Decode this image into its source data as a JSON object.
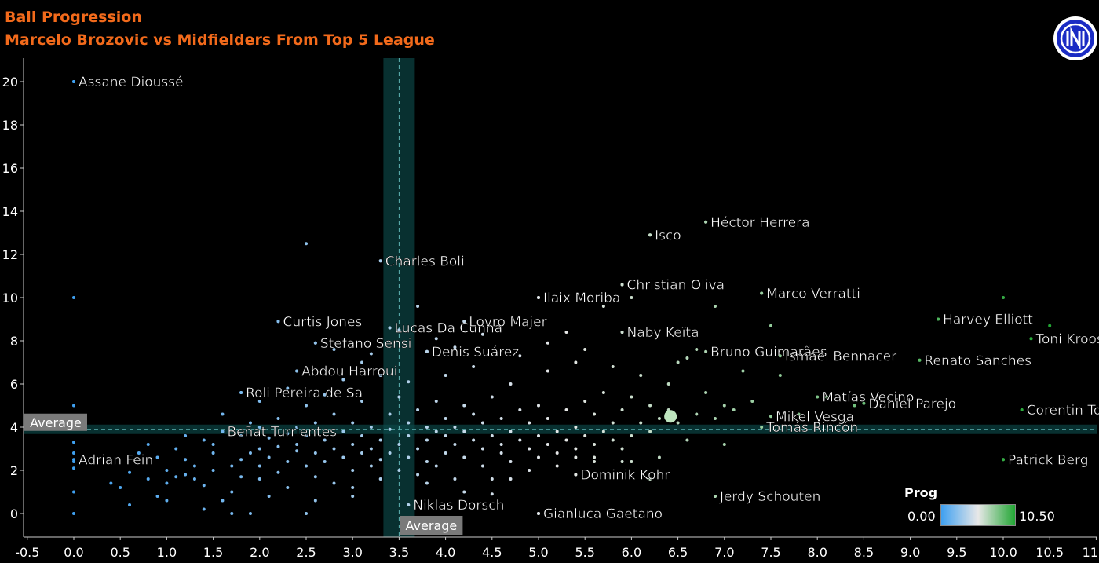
{
  "chart_data": {
    "type": "scatter",
    "title": "Ball Progression",
    "subtitle": "Marcelo Brozovic vs Midfielders From Top 5 League",
    "xlabel": "",
    "ylabel": "",
    "xlim": [
      -0.5,
      11.0
    ],
    "ylim": [
      -1,
      21
    ],
    "xticks": [
      "-0.5",
      "0.0",
      "0.5",
      "1.0",
      "1.5",
      "2.0",
      "2.5",
      "3.0",
      "3.5",
      "4.0",
      "4.5",
      "5.0",
      "5.5",
      "6.0",
      "6.5",
      "7.0",
      "7.5",
      "8.0",
      "8.5",
      "9.0",
      "9.5",
      "10.0",
      "10.5",
      "11.0"
    ],
    "yticks": [
      "0",
      "2",
      "4",
      "6",
      "8",
      "10",
      "12",
      "14",
      "16",
      "18",
      "20"
    ],
    "grid": false,
    "average_x": 3.5,
    "average_y": 3.9,
    "average_label_x": "Average",
    "average_label_y": "Average",
    "color_scale": {
      "title": "Prog",
      "min": 0.0,
      "max": 10.5,
      "min_label": "0.00",
      "max_label": "10.50",
      "colors": [
        "#3fa0f0",
        "#e8e8e8",
        "#22a634"
      ]
    },
    "highlight": {
      "x": 6.42,
      "y": 4.5,
      "color": "#bfe5bf"
    },
    "labeled_points": [
      {
        "name": "Assane Dioussé",
        "x": 0.0,
        "y": 20.0
      },
      {
        "name": "Charles Boli",
        "x": 3.3,
        "y": 11.7
      },
      {
        "name": "Curtis Jones",
        "x": 2.2,
        "y": 8.9
      },
      {
        "name": "Lucas Da Cunha",
        "x": 3.4,
        "y": 8.6
      },
      {
        "name": "Stefano Sensi",
        "x": 2.6,
        "y": 7.9
      },
      {
        "name": "Abdou Harroui",
        "x": 2.4,
        "y": 6.6
      },
      {
        "name": "Roli Pereira de Sa",
        "x": 1.8,
        "y": 5.6
      },
      {
        "name": "Beñat Turrientes",
        "x": 1.6,
        "y": 3.8
      },
      {
        "name": "Adrian Fein",
        "x": 0.0,
        "y": 2.5
      },
      {
        "name": "Ilaix Moriba",
        "x": 5.0,
        "y": 10.0
      },
      {
        "name": "Lovro Majer",
        "x": 4.2,
        "y": 8.9
      },
      {
        "name": "Denis Suárez",
        "x": 3.8,
        "y": 7.5
      },
      {
        "name": "Niklas Dorsch",
        "x": 3.6,
        "y": 0.4
      },
      {
        "name": "Gianluca Gaetano",
        "x": 5.0,
        "y": 0.0
      },
      {
        "name": "Dominik Kohr",
        "x": 5.4,
        "y": 1.8
      },
      {
        "name": "Isco",
        "x": 6.2,
        "y": 12.9
      },
      {
        "name": "Héctor Herrera",
        "x": 6.8,
        "y": 13.5
      },
      {
        "name": "Christian Oliva",
        "x": 5.9,
        "y": 10.6
      },
      {
        "name": "Naby Keïta",
        "x": 5.9,
        "y": 8.4
      },
      {
        "name": "Marco Verratti",
        "x": 7.4,
        "y": 10.2
      },
      {
        "name": "Bruno Guimarães",
        "x": 6.8,
        "y": 7.5
      },
      {
        "name": "Ismaël Bennacer",
        "x": 7.6,
        "y": 7.3
      },
      {
        "name": "Matías Vecino",
        "x": 8.0,
        "y": 5.4
      },
      {
        "name": "Mikel Vesga",
        "x": 7.5,
        "y": 4.5
      },
      {
        "name": "Tomás Rincón",
        "x": 7.4,
        "y": 4.0
      },
      {
        "name": "Jerdy Schouten",
        "x": 6.9,
        "y": 0.8
      },
      {
        "name": "Harvey Elliott",
        "x": 9.3,
        "y": 9.0
      },
      {
        "name": "Toni Kroos",
        "x": 10.3,
        "y": 8.1
      },
      {
        "name": "Renato Sanches",
        "x": 9.1,
        "y": 7.1
      },
      {
        "name": "Daniel Parejo",
        "x": 8.5,
        "y": 5.1
      },
      {
        "name": "Corentin Tolisso",
        "x": 10.2,
        "y": 4.8
      },
      {
        "name": "Patrick Berg",
        "x": 10.0,
        "y": 2.5
      }
    ],
    "points": [
      [
        0.0,
        20.0
      ],
      [
        0.0,
        10.0
      ],
      [
        0.0,
        5.0
      ],
      [
        0.0,
        4.2
      ],
      [
        0.0,
        3.3
      ],
      [
        0.0,
        2.8
      ],
      [
        0.0,
        2.4
      ],
      [
        0.0,
        2.1
      ],
      [
        0.0,
        1.0
      ],
      [
        0.0,
        0.0
      ],
      [
        0.4,
        1.4
      ],
      [
        0.5,
        1.2
      ],
      [
        0.6,
        1.9
      ],
      [
        0.7,
        2.8
      ],
      [
        0.8,
        1.6
      ],
      [
        0.9,
        2.6
      ],
      [
        0.9,
        0.8
      ],
      [
        1.0,
        2.0
      ],
      [
        1.0,
        1.4
      ],
      [
        1.0,
        0.6
      ],
      [
        1.1,
        1.7
      ],
      [
        1.1,
        3.0
      ],
      [
        1.2,
        2.5
      ],
      [
        1.2,
        1.8
      ],
      [
        1.3,
        1.6
      ],
      [
        1.3,
        2.2
      ],
      [
        1.4,
        3.4
      ],
      [
        1.4,
        1.3
      ],
      [
        1.5,
        2.8
      ],
      [
        1.5,
        2.0
      ],
      [
        1.5,
        3.2
      ],
      [
        1.6,
        0.6
      ],
      [
        1.6,
        3.8
      ],
      [
        1.7,
        2.2
      ],
      [
        1.7,
        1.0
      ],
      [
        1.7,
        0.0
      ],
      [
        1.8,
        2.5
      ],
      [
        1.8,
        3.6
      ],
      [
        1.8,
        1.7
      ],
      [
        1.9,
        2.8
      ],
      [
        1.9,
        4.2
      ],
      [
        1.9,
        0.0
      ],
      [
        2.0,
        3.0
      ],
      [
        2.0,
        2.2
      ],
      [
        2.0,
        1.6
      ],
      [
        2.0,
        4.0
      ],
      [
        2.1,
        3.5
      ],
      [
        2.1,
        2.6
      ],
      [
        2.1,
        0.8
      ],
      [
        2.2,
        3.1
      ],
      [
        2.2,
        1.9
      ],
      [
        2.2,
        4.4
      ],
      [
        2.3,
        2.4
      ],
      [
        2.3,
        3.7
      ],
      [
        2.3,
        1.2
      ],
      [
        2.4,
        2.9
      ],
      [
        2.4,
        4.0
      ],
      [
        2.4,
        3.2
      ],
      [
        2.5,
        3.6
      ],
      [
        2.5,
        2.2
      ],
      [
        2.5,
        5.0
      ],
      [
        2.5,
        0.0
      ],
      [
        2.6,
        2.8
      ],
      [
        2.6,
        4.2
      ],
      [
        2.6,
        1.7
      ],
      [
        2.7,
        3.4
      ],
      [
        2.7,
        2.4
      ],
      [
        2.7,
        5.5
      ],
      [
        2.8,
        3.0
      ],
      [
        2.8,
        4.6
      ],
      [
        2.8,
        1.4
      ],
      [
        2.9,
        3.8
      ],
      [
        2.9,
        2.6
      ],
      [
        2.9,
        6.2
      ],
      [
        3.0,
        3.2
      ],
      [
        3.0,
        2.0
      ],
      [
        3.0,
        4.2
      ],
      [
        3.0,
        0.8
      ],
      [
        3.1,
        3.6
      ],
      [
        3.1,
        2.8
      ],
      [
        3.1,
        5.2
      ],
      [
        3.2,
        3.0
      ],
      [
        3.2,
        4.0
      ],
      [
        3.2,
        2.2
      ],
      [
        3.2,
        7.4
      ],
      [
        3.3,
        3.4
      ],
      [
        3.3,
        2.5
      ],
      [
        3.3,
        1.6
      ],
      [
        3.4,
        3.9
      ],
      [
        3.4,
        2.8
      ],
      [
        3.4,
        4.6
      ],
      [
        3.5,
        3.2
      ],
      [
        3.5,
        5.4
      ],
      [
        3.5,
        2.0
      ],
      [
        3.5,
        8.5
      ],
      [
        3.6,
        3.6
      ],
      [
        3.6,
        4.2
      ],
      [
        3.6,
        2.6
      ],
      [
        3.7,
        3.0
      ],
      [
        3.7,
        4.8
      ],
      [
        3.7,
        9.6
      ],
      [
        3.7,
        1.8
      ],
      [
        3.8,
        3.4
      ],
      [
        3.8,
        4.0
      ],
      [
        3.8,
        2.4
      ],
      [
        3.9,
        3.8
      ],
      [
        3.9,
        5.2
      ],
      [
        3.9,
        2.2
      ],
      [
        4.0,
        3.6
      ],
      [
        4.0,
        4.4
      ],
      [
        4.0,
        6.4
      ],
      [
        4.0,
        2.8
      ],
      [
        4.1,
        3.2
      ],
      [
        4.1,
        4.0
      ],
      [
        4.1,
        1.6
      ],
      [
        4.2,
        3.8
      ],
      [
        4.2,
        5.0
      ],
      [
        4.2,
        2.6
      ],
      [
        4.3,
        3.4
      ],
      [
        4.3,
        4.6
      ],
      [
        4.3,
        6.8
      ],
      [
        4.4,
        3.0
      ],
      [
        4.4,
        4.2
      ],
      [
        4.4,
        2.2
      ],
      [
        4.5,
        3.6
      ],
      [
        4.5,
        5.4
      ],
      [
        4.5,
        1.6
      ],
      [
        4.6,
        3.2
      ],
      [
        4.6,
        4.4
      ],
      [
        4.6,
        2.8
      ],
      [
        4.7,
        3.8
      ],
      [
        4.7,
        6.0
      ],
      [
        4.7,
        2.4
      ],
      [
        4.8,
        3.4
      ],
      [
        4.8,
        4.8
      ],
      [
        4.9,
        3.0
      ],
      [
        4.9,
        4.2
      ],
      [
        4.9,
        2.0
      ],
      [
        5.0,
        3.6
      ],
      [
        5.0,
        5.0
      ],
      [
        5.0,
        2.6
      ],
      [
        5.1,
        3.2
      ],
      [
        5.1,
        4.4
      ],
      [
        5.1,
        6.6
      ],
      [
        5.2,
        3.8
      ],
      [
        5.2,
        2.2
      ],
      [
        5.3,
        3.4
      ],
      [
        5.3,
        4.8
      ],
      [
        5.3,
        8.4
      ],
      [
        5.4,
        3.0
      ],
      [
        5.4,
        4.0
      ],
      [
        5.4,
        2.6
      ],
      [
        5.5,
        3.6
      ],
      [
        5.5,
        5.2
      ],
      [
        5.5,
        7.6
      ],
      [
        5.6,
        3.2
      ],
      [
        5.6,
        4.6
      ],
      [
        5.6,
        2.4
      ],
      [
        5.7,
        3.8
      ],
      [
        5.7,
        5.6
      ],
      [
        5.7,
        9.6
      ],
      [
        5.8,
        3.4
      ],
      [
        5.8,
        4.2
      ],
      [
        5.8,
        6.8
      ],
      [
        5.9,
        3.0
      ],
      [
        5.9,
        4.8
      ],
      [
        6.0,
        3.6
      ],
      [
        6.0,
        5.4
      ],
      [
        6.0,
        2.4
      ],
      [
        6.1,
        4.2
      ],
      [
        6.1,
        6.4
      ],
      [
        6.2,
        3.8
      ],
      [
        6.2,
        5.0
      ],
      [
        6.3,
        4.4
      ],
      [
        6.3,
        2.6
      ],
      [
        6.4,
        6.0
      ],
      [
        6.4,
        4.8
      ],
      [
        6.5,
        7.0
      ],
      [
        6.5,
        4.2
      ],
      [
        6.6,
        3.4
      ],
      [
        6.6,
        7.2
      ],
      [
        6.7,
        4.6
      ],
      [
        6.7,
        7.6
      ],
      [
        6.8,
        5.6
      ],
      [
        6.9,
        4.4
      ],
      [
        6.9,
        9.6
      ],
      [
        7.0,
        5.0
      ],
      [
        7.0,
        3.2
      ],
      [
        7.1,
        4.8
      ],
      [
        7.2,
        6.6
      ],
      [
        7.3,
        5.2
      ],
      [
        7.5,
        8.7
      ],
      [
        7.6,
        6.4
      ],
      [
        7.8,
        4.6
      ],
      [
        8.1,
        5.4
      ],
      [
        8.4,
        5.0
      ],
      [
        9.1,
        7.1
      ],
      [
        9.3,
        9.0
      ],
      [
        10.0,
        10.0
      ],
      [
        10.3,
        8.1
      ],
      [
        10.5,
        8.7
      ],
      [
        10.2,
        4.8
      ],
      [
        10.0,
        2.5
      ],
      [
        6.9,
        0.8
      ],
      [
        5.0,
        0.0
      ],
      [
        5.4,
        1.8
      ],
      [
        3.6,
        0.4
      ],
      [
        4.5,
        0.9
      ],
      [
        3.3,
        11.7
      ],
      [
        2.5,
        12.5
      ],
      [
        6.2,
        12.9
      ],
      [
        6.8,
        13.5
      ],
      [
        5.9,
        10.6
      ],
      [
        6.0,
        10.0
      ],
      [
        7.4,
        10.2
      ],
      [
        5.9,
        8.4
      ],
      [
        2.2,
        8.9
      ],
      [
        2.6,
        7.9
      ],
      [
        2.4,
        6.6
      ],
      [
        1.8,
        5.6
      ],
      [
        5.0,
        10.0
      ],
      [
        4.2,
        8.9
      ],
      [
        3.8,
        7.5
      ],
      [
        3.4,
        8.6
      ],
      [
        3.9,
        8.1
      ],
      [
        4.1,
        7.7
      ],
      [
        4.4,
        8.3
      ],
      [
        4.8,
        7.3
      ],
      [
        5.1,
        7.9
      ],
      [
        5.4,
        7.0
      ],
      [
        2.8,
        7.6
      ],
      [
        3.1,
        7.0
      ],
      [
        3.3,
        6.4
      ],
      [
        3.6,
        6.1
      ],
      [
        2.0,
        5.2
      ],
      [
        2.3,
        5.8
      ],
      [
        1.6,
        4.6
      ],
      [
        1.2,
        3.6
      ],
      [
        0.8,
        3.2
      ],
      [
        3.8,
        1.4
      ],
      [
        4.2,
        1.0
      ],
      [
        4.7,
        1.6
      ],
      [
        5.2,
        2.8
      ],
      [
        5.6,
        2.6
      ],
      [
        6.2,
        1.6
      ],
      [
        5.9,
        2.4
      ],
      [
        3.0,
        1.2
      ],
      [
        2.6,
        0.6
      ],
      [
        1.4,
        0.2
      ],
      [
        0.6,
        0.4
      ]
    ]
  }
}
